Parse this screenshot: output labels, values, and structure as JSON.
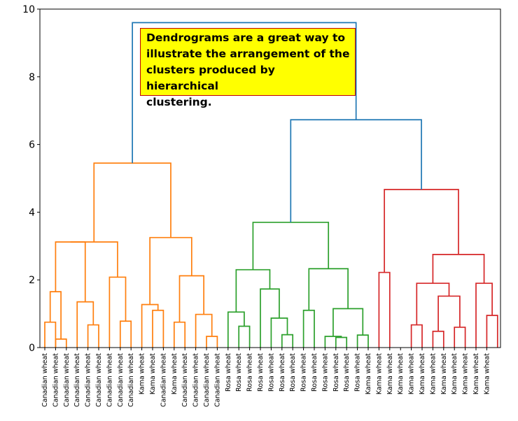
{
  "chart_data": {
    "type": "dendrogram",
    "title": "",
    "xlabel": "",
    "ylabel": "",
    "ylim": [
      0,
      10
    ],
    "yticks": [
      0,
      2,
      4,
      6,
      8,
      10
    ],
    "leaf_labels": [
      "Canadian wheat",
      "Canadian wheat",
      "Canadian wheat",
      "Canadian wheat",
      "Canadian wheat",
      "Canadian wheat",
      "Canadian wheat",
      "Canadian wheat",
      "Canadian wheat",
      "Kama wheat",
      "Kama wheat",
      "Canadian wheat",
      "Kama wheat",
      "Canadian wheat",
      "Canadian wheat",
      "Canadian wheat",
      "Canadian wheat",
      "Rosa wheat",
      "Rosa wheat",
      "Rosa wheat",
      "Rosa wheat",
      "Rosa wheat",
      "Rosa wheat",
      "Rosa wheat",
      "Rosa wheat",
      "Rosa wheat",
      "Rosa wheat",
      "Rosa wheat",
      "Rosa wheat",
      "Rosa wheat",
      "Kama wheat",
      "Kama wheat",
      "Kama wheat",
      "Kama wheat",
      "Kama wheat",
      "Kama wheat",
      "Kama wheat",
      "Kama wheat",
      "Kama wheat",
      "Kama wheat",
      "Kama wheat",
      "Kama wheat"
    ],
    "colors": {
      "above_threshold": "#1f77b4",
      "cluster_1": "#ff7f0e",
      "cluster_2": "#2ca02c",
      "cluster_3": "#d62728"
    },
    "merges": [
      {
        "color": "cluster_1",
        "left": 0,
        "right": 1,
        "height": 0.75
      },
      {
        "color": "cluster_1",
        "left": 1,
        "right": 2,
        "height": 0.25
      },
      {
        "color": "cluster_1",
        "left": 0.5,
        "right": 1.5,
        "height": 1.65
      },
      {
        "color": "cluster_1",
        "left": 4,
        "right": 5,
        "height": 0.67
      },
      {
        "color": "cluster_1",
        "left": 3,
        "right": 4.5,
        "height": 1.35
      },
      {
        "color": "cluster_1",
        "left": 1,
        "right": 3.75,
        "height": 3.12
      },
      {
        "color": "cluster_1",
        "left": 7,
        "right": 8,
        "height": 0.78
      },
      {
        "color": "cluster_1",
        "left": 6,
        "right": 7.5,
        "height": 2.08
      },
      {
        "color": "cluster_1",
        "left": 2.375,
        "right": 6.75,
        "height": 3.12
      },
      {
        "color": "cluster_1",
        "left": 10,
        "right": 11,
        "height": 1.1
      },
      {
        "color": "cluster_1",
        "left": 9,
        "right": 10.5,
        "height": 1.27
      },
      {
        "color": "cluster_1",
        "left": 12,
        "right": 13,
        "height": 0.75
      },
      {
        "color": "cluster_1",
        "left": 15,
        "right": 16,
        "height": 0.33
      },
      {
        "color": "cluster_1",
        "left": 14,
        "right": 15.5,
        "height": 0.98
      },
      {
        "color": "cluster_1",
        "left": 12.5,
        "right": 14.75,
        "height": 2.12
      },
      {
        "color": "cluster_1",
        "left": 9.75,
        "right": 13.625,
        "height": 3.25
      },
      {
        "color": "cluster_1",
        "left": 4.5625,
        "right": 11.6875,
        "height": 5.45
      },
      {
        "color": "cluster_2",
        "left": 18,
        "right": 19,
        "height": 0.63
      },
      {
        "color": "cluster_2",
        "left": 17,
        "right": 18.5,
        "height": 1.05
      },
      {
        "color": "cluster_2",
        "left": 22,
        "right": 23,
        "height": 0.38
      },
      {
        "color": "cluster_2",
        "left": 21,
        "right": 22.5,
        "height": 0.87
      },
      {
        "color": "cluster_2",
        "left": 20,
        "right": 21.75,
        "height": 1.73
      },
      {
        "color": "cluster_2",
        "left": 17.75,
        "right": 20.875,
        "height": 2.3
      },
      {
        "color": "cluster_2",
        "left": 24,
        "right": 25,
        "height": 1.1
      },
      {
        "color": "cluster_2",
        "left": 27,
        "right": 28,
        "height": 0.3
      },
      {
        "color": "cluster_2",
        "left": 26,
        "right": 27.5,
        "height": 0.33
      },
      {
        "color": "cluster_2",
        "left": 29,
        "right": 30,
        "height": 0.37
      },
      {
        "color": "cluster_2",
        "left": 26.75,
        "right": 29.5,
        "height": 1.15
      },
      {
        "color": "cluster_2",
        "left": 24.5,
        "right": 28.125,
        "height": 2.33
      },
      {
        "color": "cluster_2",
        "left": 19.3125,
        "right": 26.3125,
        "height": 3.7
      },
      {
        "color": "cluster_3",
        "left": 31,
        "right": 32,
        "height": 2.22
      },
      {
        "color": "cluster_3",
        "left": 34,
        "right": 35,
        "height": 0.67
      },
      {
        "color": "cluster_3",
        "left": 36,
        "right": 37,
        "height": 0.48
      },
      {
        "color": "cluster_3",
        "left": 38,
        "right": 39,
        "height": 0.6
      },
      {
        "color": "cluster_3",
        "left": 36.5,
        "right": 38.5,
        "height": 1.52
      },
      {
        "color": "cluster_3",
        "left": 34.5,
        "right": 37.5,
        "height": 1.9
      },
      {
        "color": "cluster_3",
        "left": 41,
        "right": 42,
        "height": 0.95
      },
      {
        "color": "cluster_3",
        "left": 40,
        "right": 41.5,
        "height": 1.9
      },
      {
        "color": "cluster_3",
        "left": 36,
        "right": 40.75,
        "height": 2.75
      },
      {
        "color": "cluster_3",
        "left": 31.5,
        "right": 38.375,
        "height": 4.67
      },
      {
        "color": "above_threshold",
        "left": 22.8125,
        "right": 34.9375,
        "height": 6.73
      },
      {
        "color": "above_threshold",
        "left": 8.125,
        "right": 28.875,
        "height": 9.6
      }
    ]
  },
  "note": {
    "lines": [
      "Dendrograms are a great way to",
      "illustrate the arrangement of the",
      "clusters produced by hierarchical",
      "clustering."
    ]
  }
}
